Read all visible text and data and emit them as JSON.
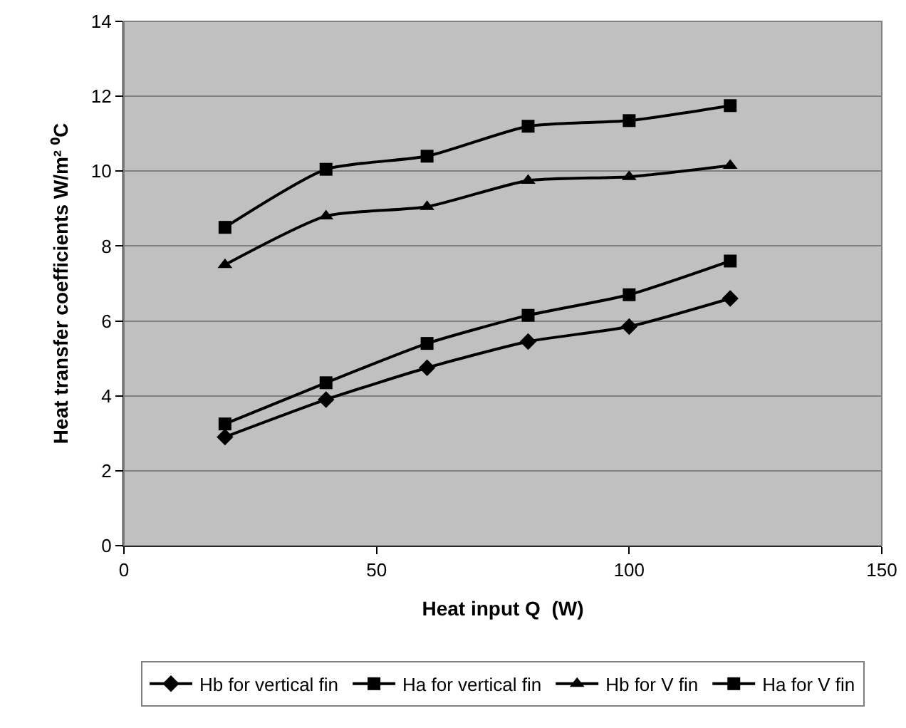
{
  "chart_data": {
    "type": "line",
    "xlabel": "Heat input Q  (W)",
    "ylabel": "Heat transfer coefficients W/m² ⁰C",
    "x": [
      20,
      40,
      60,
      80,
      100,
      120
    ],
    "series": [
      {
        "name": "Hb for vertical fin",
        "color": "#000000",
        "marker": "diamond",
        "values": [
          2.9,
          3.9,
          4.75,
          5.45,
          5.85,
          6.6
        ]
      },
      {
        "name": "Ha for vertical fin",
        "color": "#000000",
        "marker": "square",
        "values": [
          3.25,
          4.35,
          5.4,
          6.15,
          6.7,
          7.6
        ]
      },
      {
        "name": "Hb for V fin",
        "color": "#000000",
        "marker": "triangle",
        "values": [
          7.5,
          8.8,
          9.05,
          9.75,
          9.85,
          10.15
        ]
      },
      {
        "name": "Ha for V fin",
        "color": "#000000",
        "marker": "square",
        "values": [
          8.5,
          10.05,
          10.4,
          11.2,
          11.35,
          11.75
        ]
      }
    ],
    "xlim": [
      0,
      150
    ],
    "xticks": [
      0,
      50,
      100,
      150
    ],
    "ylim": [
      0,
      14
    ],
    "yticks": [
      0,
      2,
      4,
      6,
      8,
      10,
      12,
      14
    ],
    "grid": "y",
    "legend": "bottom",
    "line_style": "solid"
  }
}
